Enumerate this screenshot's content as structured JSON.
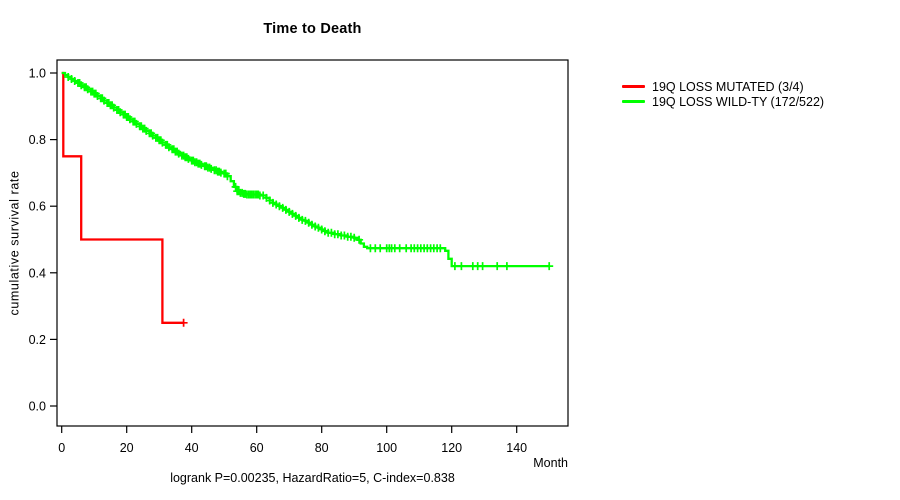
{
  "chart_data": {
    "type": "line",
    "subtype": "kaplan-meier-step",
    "title": "Time to Death",
    "xlabel": "Month",
    "ylabel": "cumulative survival rate",
    "footer": "logrank P=0.00235, HazardRatio=5, C-index=0.838",
    "x_ticks": [
      0,
      20,
      40,
      60,
      80,
      100,
      120,
      140
    ],
    "y_ticks": [
      0.0,
      0.2,
      0.4,
      0.6,
      0.8,
      1.0
    ],
    "xlim": [
      -1.5,
      155.8
    ],
    "ylim": [
      -0.06,
      1.04
    ],
    "grid": false,
    "legend_position": "right-outside",
    "axis_color": "#000000",
    "background_color": "#ffffff",
    "series": [
      {
        "name": "19Q LOSS MUTATED (3/4)",
        "color": "#ff0000",
        "points": [
          [
            0,
            1.0
          ],
          [
            0.5,
            0.75
          ],
          [
            6,
            0.5
          ],
          [
            31,
            0.25
          ],
          [
            37.5,
            0.25
          ]
        ],
        "censor_months": [
          37.5
        ]
      },
      {
        "name": "19Q LOSS WILD-TY (172/522)",
        "color": "#00ff00",
        "points": [
          [
            0,
            1.0
          ],
          [
            1,
            0.994
          ],
          [
            2,
            0.988
          ],
          [
            3,
            0.982
          ],
          [
            4,
            0.976
          ],
          [
            5,
            0.97
          ],
          [
            6,
            0.963
          ],
          [
            7,
            0.957
          ],
          [
            8,
            0.951
          ],
          [
            9,
            0.944
          ],
          [
            10,
            0.938
          ],
          [
            11,
            0.931
          ],
          [
            12,
            0.924
          ],
          [
            13,
            0.917
          ],
          [
            14,
            0.91
          ],
          [
            15,
            0.903
          ],
          [
            16,
            0.896
          ],
          [
            17,
            0.889
          ],
          [
            18,
            0.882
          ],
          [
            19,
            0.875
          ],
          [
            20,
            0.868
          ],
          [
            21,
            0.861
          ],
          [
            22,
            0.854
          ],
          [
            23,
            0.847
          ],
          [
            24,
            0.84
          ],
          [
            25,
            0.833
          ],
          [
            26,
            0.826
          ],
          [
            27,
            0.819
          ],
          [
            28,
            0.812
          ],
          [
            29,
            0.805
          ],
          [
            30,
            0.798
          ],
          [
            31,
            0.791
          ],
          [
            32,
            0.784
          ],
          [
            33,
            0.777
          ],
          [
            34,
            0.771
          ],
          [
            35,
            0.764
          ],
          [
            36,
            0.758
          ],
          [
            37,
            0.752
          ],
          [
            38,
            0.747
          ],
          [
            39,
            0.742
          ],
          [
            40,
            0.737
          ],
          [
            41,
            0.732
          ],
          [
            42,
            0.728
          ],
          [
            43,
            0.724
          ],
          [
            44,
            0.72
          ],
          [
            45,
            0.716
          ],
          [
            46,
            0.712
          ],
          [
            47,
            0.708
          ],
          [
            48,
            0.704
          ],
          [
            49,
            0.701
          ],
          [
            50,
            0.698
          ],
          [
            51,
            0.69
          ],
          [
            52,
            0.675
          ],
          [
            53,
            0.658
          ],
          [
            54,
            0.645
          ],
          [
            55,
            0.64
          ],
          [
            56,
            0.637
          ],
          [
            57,
            0.635
          ],
          [
            61,
            0.632
          ],
          [
            63,
            0.625
          ],
          [
            64,
            0.617
          ],
          [
            65,
            0.61
          ],
          [
            66,
            0.605
          ],
          [
            67,
            0.6
          ],
          [
            68,
            0.595
          ],
          [
            69,
            0.589
          ],
          [
            70,
            0.583
          ],
          [
            71,
            0.577
          ],
          [
            72,
            0.571
          ],
          [
            73,
            0.565
          ],
          [
            74,
            0.559
          ],
          [
            75,
            0.556
          ],
          [
            76,
            0.55
          ],
          [
            77,
            0.544
          ],
          [
            78,
            0.539
          ],
          [
            79,
            0.535
          ],
          [
            80,
            0.53
          ],
          [
            81,
            0.525
          ],
          [
            82,
            0.52
          ],
          [
            84,
            0.516
          ],
          [
            86,
            0.512
          ],
          [
            88,
            0.508
          ],
          [
            90,
            0.505
          ],
          [
            91,
            0.499
          ],
          [
            92,
            0.488
          ],
          [
            93,
            0.478
          ],
          [
            94,
            0.474
          ],
          [
            118,
            0.466
          ],
          [
            119,
            0.442
          ],
          [
            120,
            0.42
          ],
          [
            150,
            0.42
          ]
        ],
        "censor_months": [
          2,
          3,
          4,
          5,
          5.5,
          6,
          7,
          7.5,
          8,
          9,
          9.5,
          10,
          10.5,
          11,
          12,
          12.5,
          13,
          14,
          14.5,
          15,
          15.5,
          16,
          17,
          17.5,
          18,
          19,
          19.5,
          20,
          20.5,
          21,
          22,
          22.5,
          23,
          24,
          24.5,
          25,
          25.5,
          26,
          27,
          27.5,
          28,
          29,
          29.5,
          30,
          30.5,
          31,
          32,
          32.5,
          33,
          34,
          34.5,
          35,
          35.5,
          36,
          37,
          37.5,
          38,
          38.5,
          39,
          40,
          40.5,
          41,
          41.5,
          42,
          42.5,
          43,
          44,
          44.5,
          45,
          45.5,
          46,
          47,
          47.5,
          48,
          48.5,
          49,
          50,
          50.5,
          51,
          53.5,
          54,
          54.5,
          55,
          55.5,
          56,
          56.5,
          57,
          57.5,
          58,
          58.5,
          59,
          59.5,
          60,
          60.5,
          61,
          62,
          63,
          64,
          65,
          66,
          67,
          68,
          69,
          70,
          71,
          72,
          73,
          74,
          75,
          76,
          77,
          78,
          79,
          80,
          81,
          82,
          83,
          84,
          85,
          86,
          87,
          88,
          89,
          90,
          91.5,
          95,
          96.5,
          98,
          100,
          100.8,
          101.5,
          102.5,
          104,
          106,
          107.5,
          108.5,
          109.5,
          110.5,
          111.5,
          112.5,
          113.5,
          114.5,
          115.5,
          116.5,
          121,
          123,
          126.5,
          128,
          129.5,
          134,
          137,
          150
        ]
      }
    ]
  }
}
